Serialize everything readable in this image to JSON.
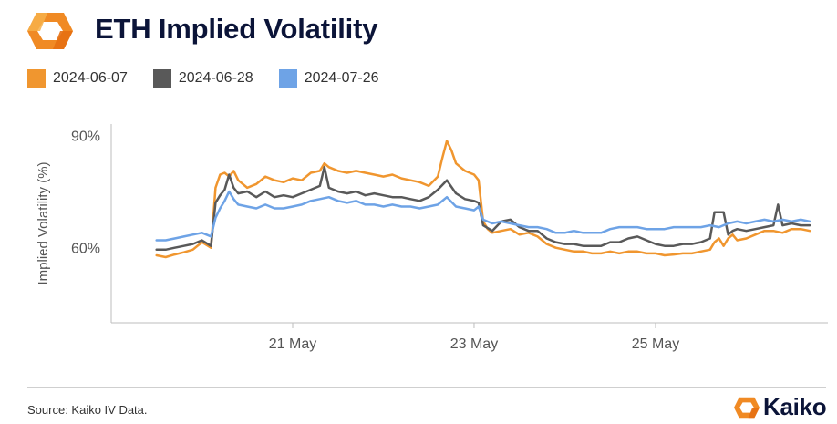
{
  "header": {
    "title": "ETH Implied Volatility",
    "logo_icon": "kaiko-hexagon-logo-icon"
  },
  "colors": {
    "orange": "#f0962f",
    "gray": "#595959",
    "blue": "#6ea3e6",
    "title": "#0b1438"
  },
  "footer": {
    "source": "Source: Kaiko IV Data.",
    "brand": "Kaiko"
  },
  "chart_data": {
    "type": "line",
    "ylabel": "Implied Volatility (%)",
    "y_ticks": [
      "90%",
      "60%"
    ],
    "y_tick_values": [
      90,
      60
    ],
    "ylim": [
      40,
      93
    ],
    "x_ticks": [
      "21 May",
      "23 May",
      "25 May"
    ],
    "x_tick_days": [
      21,
      23,
      25
    ],
    "xlim": [
      19.0,
      26.9
    ],
    "grid": false,
    "legend_position": "top-left",
    "series": [
      {
        "name": "2024-06-07",
        "color": "#f0962f",
        "points": [
          [
            19.5,
            58.0
          ],
          [
            19.6,
            57.5
          ],
          [
            19.7,
            58.2
          ],
          [
            19.8,
            58.8
          ],
          [
            19.9,
            59.5
          ],
          [
            20.0,
            61.5
          ],
          [
            20.1,
            60.0
          ],
          [
            20.15,
            76.0
          ],
          [
            20.2,
            79.5
          ],
          [
            20.25,
            80.0
          ],
          [
            20.3,
            79.0
          ],
          [
            20.35,
            80.5
          ],
          [
            20.4,
            78.0
          ],
          [
            20.5,
            76.0
          ],
          [
            20.6,
            77.0
          ],
          [
            20.7,
            79.0
          ],
          [
            20.8,
            78.0
          ],
          [
            20.9,
            77.5
          ],
          [
            21.0,
            78.5
          ],
          [
            21.1,
            78.0
          ],
          [
            21.2,
            80.0
          ],
          [
            21.3,
            80.5
          ],
          [
            21.35,
            82.5
          ],
          [
            21.4,
            81.5
          ],
          [
            21.5,
            80.5
          ],
          [
            21.6,
            80.0
          ],
          [
            21.7,
            80.5
          ],
          [
            21.8,
            80.0
          ],
          [
            21.9,
            79.5
          ],
          [
            22.0,
            79.0
          ],
          [
            22.1,
            79.5
          ],
          [
            22.2,
            78.5
          ],
          [
            22.3,
            78.0
          ],
          [
            22.4,
            77.5
          ],
          [
            22.5,
            76.5
          ],
          [
            22.6,
            79.0
          ],
          [
            22.65,
            84.0
          ],
          [
            22.7,
            88.5
          ],
          [
            22.75,
            86.0
          ],
          [
            22.8,
            82.5
          ],
          [
            22.9,
            80.5
          ],
          [
            23.0,
            79.5
          ],
          [
            23.05,
            78.0
          ],
          [
            23.1,
            67.0
          ],
          [
            23.15,
            65.0
          ],
          [
            23.2,
            64.0
          ],
          [
            23.3,
            64.5
          ],
          [
            23.4,
            65.0
          ],
          [
            23.5,
            63.5
          ],
          [
            23.6,
            64.0
          ],
          [
            23.7,
            63.0
          ],
          [
            23.8,
            61.0
          ],
          [
            23.9,
            60.0
          ],
          [
            24.0,
            59.5
          ],
          [
            24.1,
            59.0
          ],
          [
            24.2,
            59.0
          ],
          [
            24.3,
            58.5
          ],
          [
            24.4,
            58.5
          ],
          [
            24.5,
            59.0
          ],
          [
            24.6,
            58.5
          ],
          [
            24.7,
            59.0
          ],
          [
            24.8,
            59.0
          ],
          [
            24.9,
            58.5
          ],
          [
            25.0,
            58.5
          ],
          [
            25.1,
            58.0
          ],
          [
            25.2,
            58.2
          ],
          [
            25.3,
            58.5
          ],
          [
            25.4,
            58.5
          ],
          [
            25.5,
            59.0
          ],
          [
            25.6,
            59.5
          ],
          [
            25.65,
            61.5
          ],
          [
            25.7,
            62.5
          ],
          [
            25.75,
            60.5
          ],
          [
            25.8,
            62.5
          ],
          [
            25.85,
            63.5
          ],
          [
            25.9,
            62.0
          ],
          [
            26.0,
            62.5
          ],
          [
            26.1,
            63.5
          ],
          [
            26.2,
            64.5
          ],
          [
            26.3,
            64.5
          ],
          [
            26.4,
            64.0
          ],
          [
            26.5,
            65.0
          ],
          [
            26.6,
            65.0
          ],
          [
            26.7,
            64.5
          ]
        ]
      },
      {
        "name": "2024-06-28",
        "color": "#595959",
        "points": [
          [
            19.5,
            59.5
          ],
          [
            19.6,
            59.5
          ],
          [
            19.7,
            60.0
          ],
          [
            19.8,
            60.5
          ],
          [
            19.9,
            61.0
          ],
          [
            20.0,
            62.0
          ],
          [
            20.1,
            60.5
          ],
          [
            20.15,
            72.0
          ],
          [
            20.2,
            74.0
          ],
          [
            20.25,
            75.5
          ],
          [
            20.3,
            79.5
          ],
          [
            20.35,
            76.0
          ],
          [
            20.4,
            74.5
          ],
          [
            20.5,
            75.0
          ],
          [
            20.6,
            73.5
          ],
          [
            20.7,
            75.0
          ],
          [
            20.8,
            73.5
          ],
          [
            20.9,
            74.0
          ],
          [
            21.0,
            73.5
          ],
          [
            21.1,
            74.5
          ],
          [
            21.2,
            75.5
          ],
          [
            21.3,
            76.5
          ],
          [
            21.35,
            81.5
          ],
          [
            21.4,
            76.0
          ],
          [
            21.5,
            75.0
          ],
          [
            21.6,
            74.5
          ],
          [
            21.7,
            75.0
          ],
          [
            21.8,
            74.0
          ],
          [
            21.9,
            74.5
          ],
          [
            22.0,
            74.0
          ],
          [
            22.1,
            73.5
          ],
          [
            22.2,
            73.5
          ],
          [
            22.3,
            73.0
          ],
          [
            22.4,
            72.5
          ],
          [
            22.5,
            73.5
          ],
          [
            22.6,
            75.5
          ],
          [
            22.7,
            78.0
          ],
          [
            22.8,
            74.5
          ],
          [
            22.9,
            73.0
          ],
          [
            23.0,
            72.5
          ],
          [
            23.05,
            72.0
          ],
          [
            23.1,
            66.0
          ],
          [
            23.2,
            64.5
          ],
          [
            23.3,
            67.0
          ],
          [
            23.4,
            67.5
          ],
          [
            23.5,
            65.5
          ],
          [
            23.6,
            64.5
          ],
          [
            23.7,
            64.5
          ],
          [
            23.8,
            62.5
          ],
          [
            23.9,
            61.5
          ],
          [
            24.0,
            61.0
          ],
          [
            24.1,
            61.0
          ],
          [
            24.2,
            60.5
          ],
          [
            24.3,
            60.5
          ],
          [
            24.4,
            60.5
          ],
          [
            24.5,
            61.5
          ],
          [
            24.6,
            61.5
          ],
          [
            24.7,
            62.5
          ],
          [
            24.8,
            63.0
          ],
          [
            24.9,
            62.0
          ],
          [
            25.0,
            61.0
          ],
          [
            25.1,
            60.5
          ],
          [
            25.2,
            60.5
          ],
          [
            25.3,
            61.0
          ],
          [
            25.4,
            61.0
          ],
          [
            25.5,
            61.5
          ],
          [
            25.6,
            62.5
          ],
          [
            25.65,
            69.5
          ],
          [
            25.7,
            69.5
          ],
          [
            25.75,
            69.5
          ],
          [
            25.8,
            63.5
          ],
          [
            25.85,
            64.5
          ],
          [
            25.9,
            65.0
          ],
          [
            26.0,
            64.5
          ],
          [
            26.1,
            65.0
          ],
          [
            26.2,
            65.5
          ],
          [
            26.3,
            66.0
          ],
          [
            26.35,
            71.5
          ],
          [
            26.4,
            66.0
          ],
          [
            26.5,
            66.5
          ],
          [
            26.6,
            66.0
          ],
          [
            26.7,
            66.0
          ]
        ]
      },
      {
        "name": "2024-07-26",
        "color": "#6ea3e6",
        "points": [
          [
            19.5,
            62.0
          ],
          [
            19.6,
            62.0
          ],
          [
            19.7,
            62.5
          ],
          [
            19.8,
            63.0
          ],
          [
            19.9,
            63.5
          ],
          [
            20.0,
            64.0
          ],
          [
            20.05,
            63.5
          ],
          [
            20.1,
            63.0
          ],
          [
            20.15,
            68.0
          ],
          [
            20.2,
            70.5
          ],
          [
            20.25,
            72.5
          ],
          [
            20.3,
            75.0
          ],
          [
            20.35,
            73.0
          ],
          [
            20.4,
            71.5
          ],
          [
            20.5,
            71.0
          ],
          [
            20.6,
            70.5
          ],
          [
            20.7,
            71.5
          ],
          [
            20.8,
            70.5
          ],
          [
            20.9,
            70.5
          ],
          [
            21.0,
            71.0
          ],
          [
            21.1,
            71.5
          ],
          [
            21.2,
            72.5
          ],
          [
            21.3,
            73.0
          ],
          [
            21.4,
            73.5
          ],
          [
            21.5,
            72.5
          ],
          [
            21.6,
            72.0
          ],
          [
            21.7,
            72.5
          ],
          [
            21.8,
            71.5
          ],
          [
            21.9,
            71.5
          ],
          [
            22.0,
            71.0
          ],
          [
            22.1,
            71.5
          ],
          [
            22.2,
            71.0
          ],
          [
            22.3,
            71.0
          ],
          [
            22.4,
            70.5
          ],
          [
            22.5,
            71.0
          ],
          [
            22.6,
            71.5
          ],
          [
            22.7,
            73.5
          ],
          [
            22.8,
            71.0
          ],
          [
            22.9,
            70.5
          ],
          [
            23.0,
            70.0
          ],
          [
            23.05,
            71.0
          ],
          [
            23.1,
            67.5
          ],
          [
            23.2,
            66.5
          ],
          [
            23.3,
            67.0
          ],
          [
            23.4,
            66.5
          ],
          [
            23.5,
            66.0
          ],
          [
            23.6,
            65.5
          ],
          [
            23.7,
            65.5
          ],
          [
            23.8,
            65.0
          ],
          [
            23.9,
            64.0
          ],
          [
            24.0,
            64.0
          ],
          [
            24.1,
            64.5
          ],
          [
            24.2,
            64.0
          ],
          [
            24.3,
            64.0
          ],
          [
            24.4,
            64.0
          ],
          [
            24.5,
            65.0
          ],
          [
            24.6,
            65.5
          ],
          [
            24.7,
            65.5
          ],
          [
            24.8,
            65.5
          ],
          [
            24.9,
            65.0
          ],
          [
            25.0,
            65.0
          ],
          [
            25.1,
            65.0
          ],
          [
            25.2,
            65.5
          ],
          [
            25.3,
            65.5
          ],
          [
            25.4,
            65.5
          ],
          [
            25.5,
            65.5
          ],
          [
            25.6,
            66.0
          ],
          [
            25.7,
            65.5
          ],
          [
            25.8,
            66.5
          ],
          [
            25.9,
            67.0
          ],
          [
            26.0,
            66.5
          ],
          [
            26.1,
            67.0
          ],
          [
            26.2,
            67.5
          ],
          [
            26.3,
            67.0
          ],
          [
            26.4,
            67.5
          ],
          [
            26.5,
            67.0
          ],
          [
            26.6,
            67.5
          ],
          [
            26.7,
            67.0
          ]
        ]
      }
    ]
  }
}
